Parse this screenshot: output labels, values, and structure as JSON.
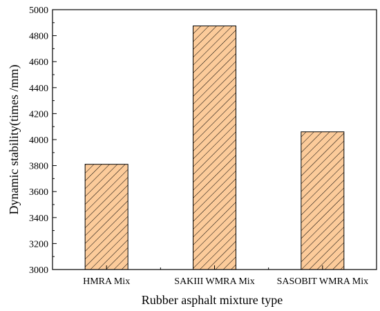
{
  "chart_data": {
    "type": "bar",
    "categories": [
      "HMRA Mix",
      "SAKIII WMRA Mix",
      "SASOBIT WMRA Mix"
    ],
    "values": [
      3810,
      4875,
      4060
    ],
    "xlabel": "Rubber asphalt mixture type",
    "ylabel": "Dynamic stability(times /mm)",
    "ylim": [
      3000,
      5000
    ],
    "yticks": [
      3000,
      3200,
      3400,
      3600,
      3800,
      4000,
      4200,
      4400,
      4600,
      4800,
      5000
    ],
    "grid": false,
    "legend": "none",
    "bar_fill": "#FCCB9A",
    "hatch_color": "#000000",
    "hatch": "diagonal"
  }
}
